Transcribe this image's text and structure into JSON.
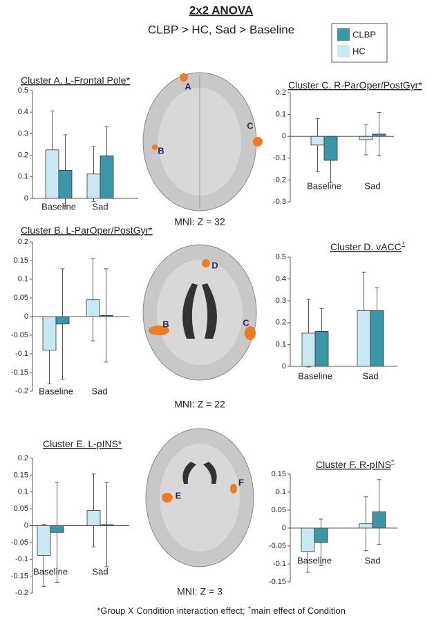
{
  "figure": {
    "title": "2x2 ANOVA",
    "subtitle": "CLBP > HC, Sad > Baseline",
    "footnote": [
      "*Group X Condition interaction effect; ",
      "+",
      "main effect of Condition"
    ],
    "brains": [
      {
        "caption": "MNI: Z = 32",
        "labels": [
          "A",
          "B",
          "C"
        ]
      },
      {
        "caption": "MNI: Z = 22",
        "labels": [
          "D",
          "B",
          "C"
        ]
      },
      {
        "caption": "MNI: Z = 3",
        "labels": [
          "E",
          "F"
        ]
      }
    ]
  },
  "chart_data": [
    {
      "type": "bar",
      "title": "Cluster A. L-Frontal Pole*",
      "categories": [
        "Baseline",
        "Sad"
      ],
      "series": [
        {
          "name": "HC",
          "color": "#c9e9f2",
          "values": [
            0.225,
            0.113
          ],
          "errors": [
            0.18,
            0.127
          ]
        },
        {
          "name": "CLBP",
          "color": "#3a97a8",
          "values": [
            0.13,
            0.197
          ],
          "errors": [
            0.165,
            0.136
          ]
        }
      ],
      "ylim": [
        0,
        0.5
      ],
      "yticks": [
        0,
        0.1,
        0.2,
        0.3,
        0.4,
        0.5
      ]
    },
    {
      "type": "bar",
      "title": "Cluster C. R-ParOper/PostGyr*",
      "categories": [
        "Baseline",
        "Sad"
      ],
      "series": [
        {
          "name": "HC",
          "color": "#c9e9f2",
          "values": [
            -0.04,
            -0.015
          ],
          "errors": [
            0.122,
            0.07
          ]
        },
        {
          "name": "CLBP",
          "color": "#3a97a8",
          "values": [
            -0.11,
            0.01
          ],
          "errors": [
            0.1,
            0.1
          ]
        }
      ],
      "ylim": [
        -0.3,
        0.2
      ],
      "yticks": [
        -0.3,
        -0.2,
        -0.1,
        0,
        0.1,
        0.2
      ]
    },
    {
      "type": "bar",
      "title": "Cluster B. L-ParOper/PostGyr*",
      "categories": [
        "Baseline",
        "Sad"
      ],
      "series": [
        {
          "name": "HC",
          "color": "#c9e9f2",
          "values": [
            -0.09,
            0.045
          ],
          "errors": [
            0.09,
            0.11
          ]
        },
        {
          "name": "CLBP",
          "color": "#3a97a8",
          "values": [
            -0.02,
            0.003
          ],
          "errors": [
            0.148,
            0.125
          ]
        }
      ],
      "ylim": [
        -0.2,
        0.2
      ],
      "yticks": [
        -0.2,
        -0.15,
        -0.1,
        -0.05,
        0,
        0.05,
        0.1,
        0.15,
        0.2
      ]
    },
    {
      "type": "bar",
      "title": "Cluster D. vACC",
      "title_sup": "+",
      "categories": [
        "Baseline",
        "Sad"
      ],
      "series": [
        {
          "name": "HC",
          "color": "#c9e9f2",
          "values": [
            0.152,
            0.255
          ],
          "errors": [
            0.155,
            0.175
          ]
        },
        {
          "name": "CLBP",
          "color": "#3a97a8",
          "values": [
            0.16,
            0.255
          ],
          "errors": [
            0.105,
            0.105
          ]
        }
      ],
      "ylim": [
        0,
        0.5
      ],
      "yticks": [
        0,
        0.1,
        0.2,
        0.3,
        0.4,
        0.5
      ]
    },
    {
      "type": "bar",
      "title": "Cluster E. L-pINS*",
      "categories": [
        "Baseline",
        "Sad"
      ],
      "series": [
        {
          "name": "HC",
          "color": "#c9e9f2",
          "values": [
            -0.088,
            0.045
          ],
          "errors": [
            0.092,
            0.108
          ]
        },
        {
          "name": "CLBP",
          "color": "#3a97a8",
          "values": [
            -0.02,
            0.003
          ],
          "errors": [
            0.148,
            0.125
          ]
        }
      ],
      "ylim": [
        -0.2,
        0.2
      ],
      "yticks": [
        -0.2,
        -0.15,
        -0.1,
        -0.05,
        0,
        0.05,
        0.1,
        0.15,
        0.2
      ]
    },
    {
      "type": "bar",
      "title": "Cluster F. R-pINS",
      "title_sup": "+",
      "categories": [
        "Baseline",
        "Sad"
      ],
      "series": [
        {
          "name": "HC",
          "color": "#c9e9f2",
          "values": [
            -0.065,
            0.012
          ],
          "errors": [
            0.058,
            0.075
          ]
        },
        {
          "name": "CLBP",
          "color": "#3a97a8",
          "values": [
            -0.04,
            0.045
          ],
          "errors": [
            0.065,
            0.09
          ]
        }
      ],
      "ylim": [
        -0.15,
        0.15
      ],
      "yticks": [
        -0.15,
        -0.1,
        -0.05,
        0,
        0.05,
        0.1,
        0.15
      ]
    }
  ],
  "legend": [
    {
      "name": "CLBP",
      "color": "#3a97a8"
    },
    {
      "name": "HC",
      "color": "#c9e9f2"
    }
  ]
}
